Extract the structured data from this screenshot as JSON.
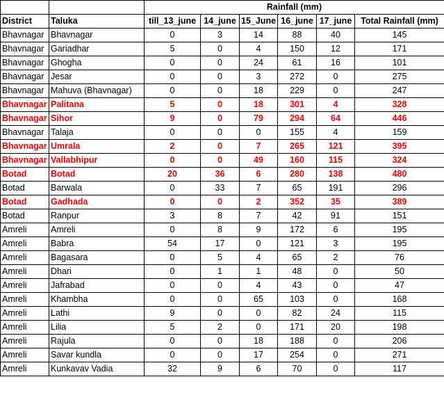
{
  "table": {
    "group_header": "Rainfall (mm)",
    "columns": [
      "District",
      "Taluka",
      "till_13_june",
      "14_june",
      "15_June",
      "16_june",
      "17_june",
      "Total Rainfall (mm)"
    ],
    "highlight_color": "#ff0000",
    "rows": [
      {
        "district": "Bhavnagar",
        "taluka": "Bhavnagar",
        "till_13_june": "0",
        "june_14": "3",
        "june_15": "14",
        "june_16": "88",
        "june_17": "40",
        "total": "145",
        "highlight": false
      },
      {
        "district": "Bhavnagar",
        "taluka": "Gariadhar",
        "till_13_june": "5",
        "june_14": "0",
        "june_15": "4",
        "june_16": "150",
        "june_17": "12",
        "total": "171",
        "highlight": false
      },
      {
        "district": "Bhavnagar",
        "taluka": "Ghogha",
        "till_13_june": "0",
        "june_14": "0",
        "june_15": "24",
        "june_16": "61",
        "june_17": "16",
        "total": "101",
        "highlight": false
      },
      {
        "district": "Bhavnagar",
        "taluka": "Jesar",
        "till_13_june": "0",
        "june_14": "0",
        "june_15": "3",
        "june_16": "272",
        "june_17": "0",
        "total": "275",
        "highlight": false
      },
      {
        "district": "Bhavnagar",
        "taluka": "Mahuva (Bhavnagar)",
        "till_13_june": "0",
        "june_14": "0",
        "june_15": "18",
        "june_16": "229",
        "june_17": "0",
        "total": "247",
        "highlight": false
      },
      {
        "district": "Bhavnagar",
        "taluka": "Palitana",
        "till_13_june": "5",
        "june_14": "0",
        "june_15": "18",
        "june_16": "301",
        "june_17": "4",
        "total": "328",
        "highlight": true
      },
      {
        "district": "Bhavnagar",
        "taluka": "Sihor",
        "till_13_june": "9",
        "june_14": "0",
        "june_15": "79",
        "june_16": "294",
        "june_17": "64",
        "total": "446",
        "highlight": true
      },
      {
        "district": "Bhavnagar",
        "taluka": "Talaja",
        "till_13_june": "0",
        "june_14": "0",
        "june_15": "0",
        "june_16": "155",
        "june_17": "4",
        "total": "159",
        "highlight": false
      },
      {
        "district": "Bhavnagar",
        "taluka": "Umrala",
        "till_13_june": "2",
        "june_14": "0",
        "june_15": "7",
        "june_16": "265",
        "june_17": "121",
        "total": "395",
        "highlight": true
      },
      {
        "district": "Bhavnagar",
        "taluka": "Vallabhipur",
        "till_13_june": "0",
        "june_14": "0",
        "june_15": "49",
        "june_16": "160",
        "june_17": "115",
        "total": "324",
        "highlight": true
      },
      {
        "district": "Botad",
        "taluka": "Botad",
        "till_13_june": "20",
        "june_14": "36",
        "june_15": "6",
        "june_16": "280",
        "june_17": "138",
        "total": "480",
        "highlight": true
      },
      {
        "district": "Botad",
        "taluka": "Barwala",
        "till_13_june": "0",
        "june_14": "33",
        "june_15": "7",
        "june_16": "65",
        "june_17": "191",
        "total": "296",
        "highlight": false
      },
      {
        "district": "Botad",
        "taluka": "Gadhada",
        "till_13_june": "0",
        "june_14": "0",
        "june_15": "2",
        "june_16": "352",
        "june_17": "35",
        "total": "389",
        "highlight": true
      },
      {
        "district": "Botad",
        "taluka": "Ranpur",
        "till_13_june": "3",
        "june_14": "8",
        "june_15": "7",
        "june_16": "42",
        "june_17": "91",
        "total": "151",
        "highlight": false
      },
      {
        "district": "Amreli",
        "taluka": "Amreli",
        "till_13_june": "0",
        "june_14": "8",
        "june_15": "9",
        "june_16": "172",
        "june_17": "6",
        "total": "195",
        "highlight": false
      },
      {
        "district": "Amreli",
        "taluka": "Babra",
        "till_13_june": "54",
        "june_14": "17",
        "june_15": "0",
        "june_16": "121",
        "june_17": "3",
        "total": "195",
        "highlight": false
      },
      {
        "district": "Amreli",
        "taluka": "Bagasara",
        "till_13_june": "0",
        "june_14": "5",
        "june_15": "4",
        "june_16": "65",
        "june_17": "2",
        "total": "76",
        "highlight": false
      },
      {
        "district": "Amreli",
        "taluka": "Dhari",
        "till_13_june": "0",
        "june_14": "1",
        "june_15": "1",
        "june_16": "48",
        "june_17": "0",
        "total": "50",
        "highlight": false
      },
      {
        "district": "Amreli",
        "taluka": "Jafrabad",
        "till_13_june": "0",
        "june_14": "0",
        "june_15": "4",
        "june_16": "43",
        "june_17": "0",
        "total": "47",
        "highlight": false
      },
      {
        "district": "Amreli",
        "taluka": "Khambha",
        "till_13_june": "0",
        "june_14": "0",
        "june_15": "65",
        "june_16": "103",
        "june_17": "0",
        "total": "168",
        "highlight": false
      },
      {
        "district": "Amreli",
        "taluka": "Lathi",
        "till_13_june": "9",
        "june_14": "0",
        "june_15": "0",
        "june_16": "82",
        "june_17": "24",
        "total": "115",
        "highlight": false
      },
      {
        "district": "Amreli",
        "taluka": "Lilia",
        "till_13_june": "5",
        "june_14": "2",
        "june_15": "0",
        "june_16": "171",
        "june_17": "20",
        "total": "198",
        "highlight": false
      },
      {
        "district": "Amreli",
        "taluka": "Rajula",
        "till_13_june": "0",
        "june_14": "0",
        "june_15": "18",
        "june_16": "188",
        "june_17": "0",
        "total": "206",
        "highlight": false
      },
      {
        "district": "Amreli",
        "taluka": "Savar kundla",
        "till_13_june": "0",
        "june_14": "0",
        "june_15": "17",
        "june_16": "254",
        "june_17": "0",
        "total": "271",
        "highlight": false
      },
      {
        "district": "Amreli",
        "taluka": "Kunkavav Vadia",
        "till_13_june": "32",
        "june_14": "9",
        "june_15": "6",
        "june_16": "70",
        "june_17": "0",
        "total": "117",
        "highlight": false
      }
    ]
  }
}
